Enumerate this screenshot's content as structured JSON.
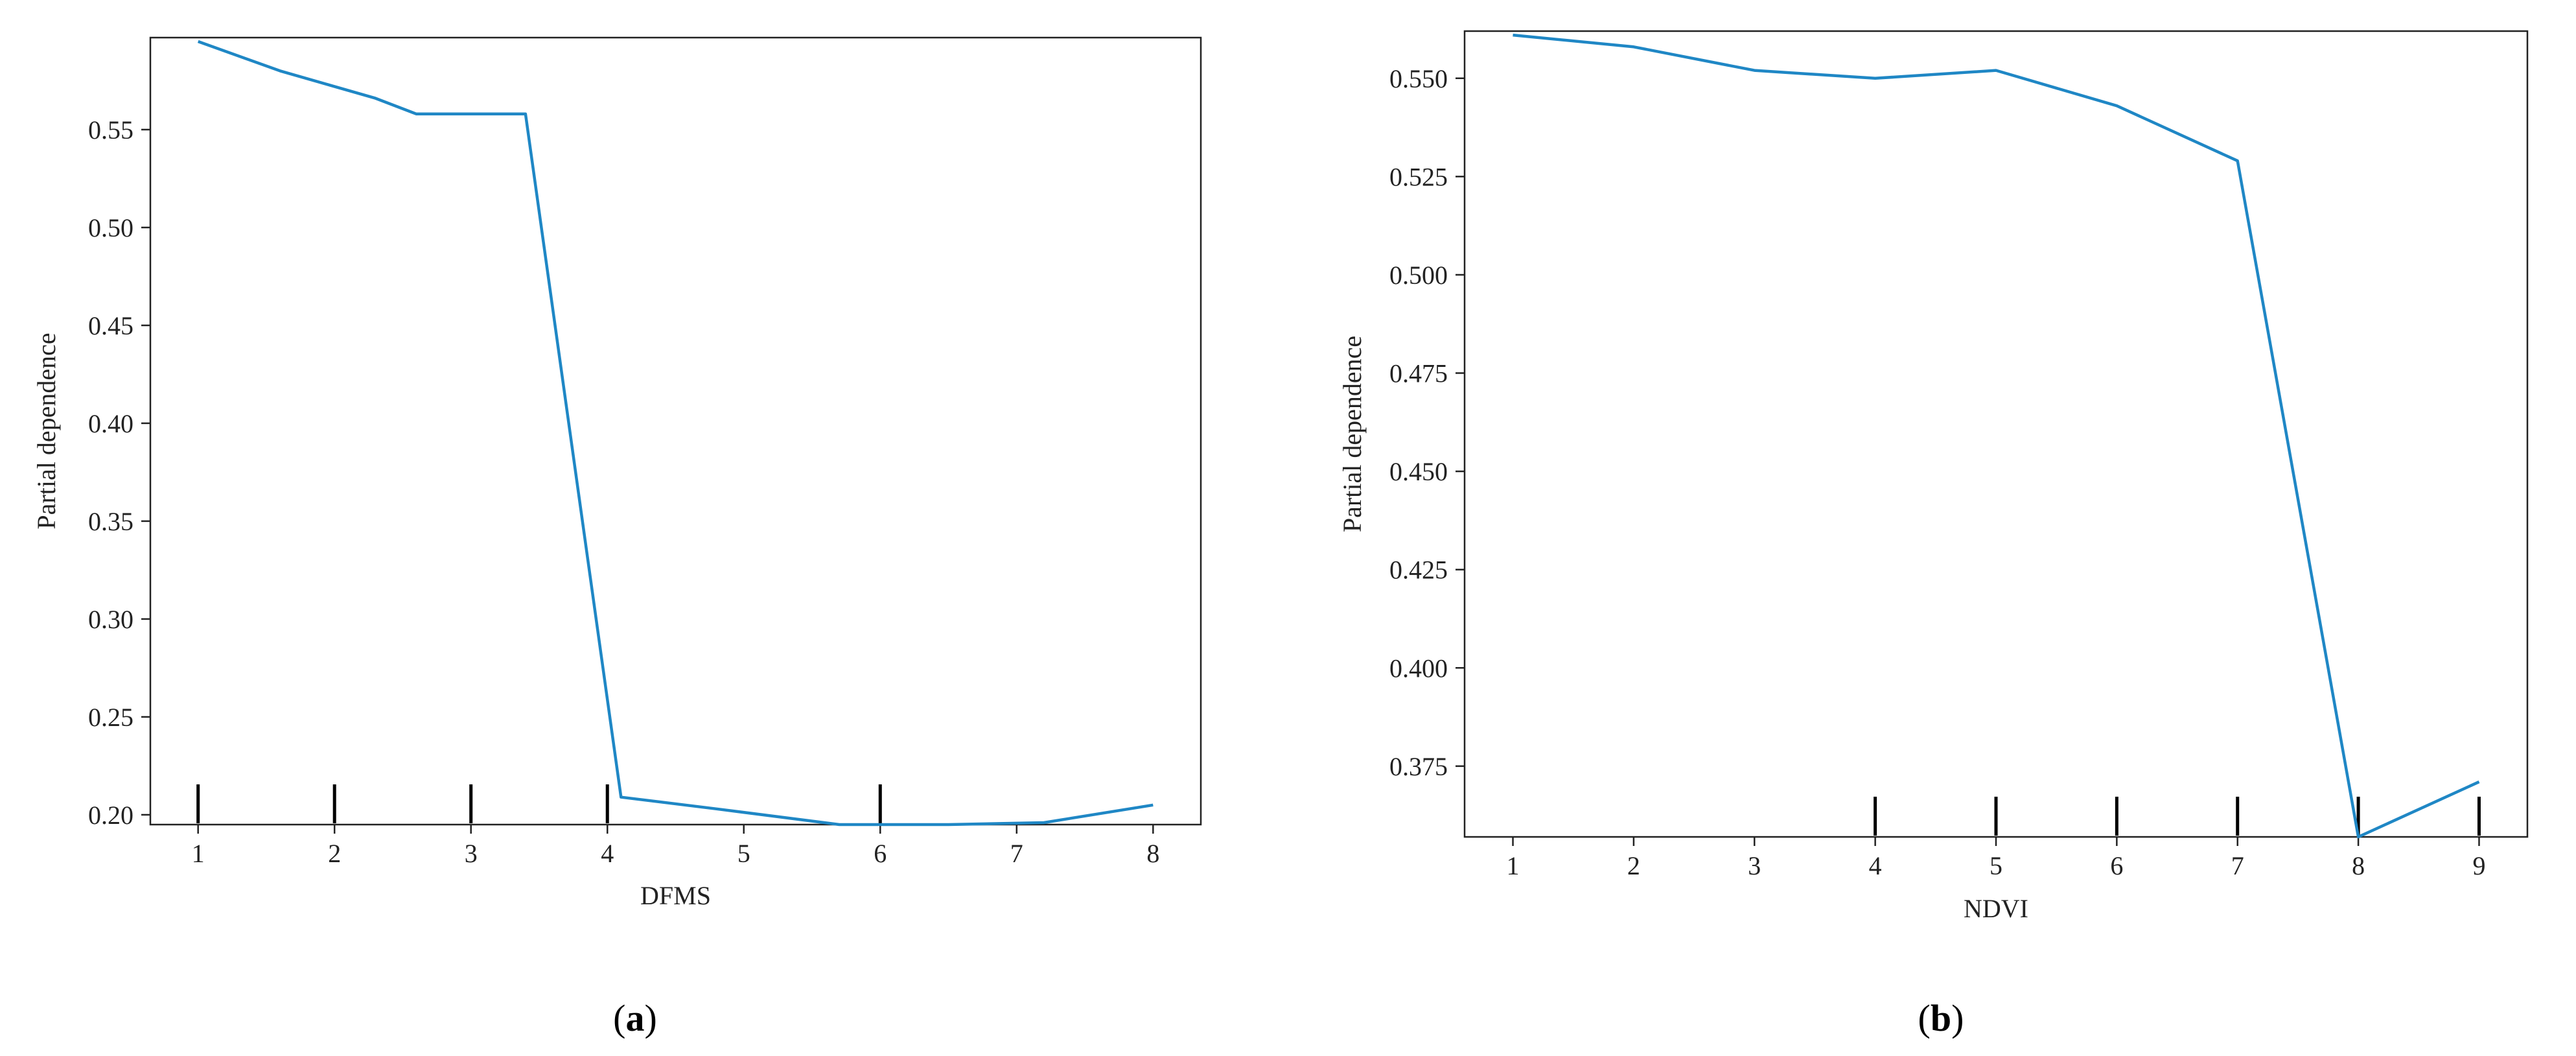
{
  "chart_data": [
    {
      "type": "line",
      "panel": "a",
      "caption_letter": "a",
      "xlabel": "DFMS",
      "ylabel": "Partial dependence",
      "xlim": [
        0.65,
        8.35
      ],
      "ylim": [
        0.195,
        0.597
      ],
      "xticks": [
        1,
        2,
        3,
        4,
        5,
        6,
        7,
        8
      ],
      "yticks": [
        0.2,
        0.25,
        0.3,
        0.35,
        0.4,
        0.45,
        0.5,
        0.55
      ],
      "ytick_labels": [
        "0.20",
        "0.25",
        "0.30",
        "0.35",
        "0.40",
        "0.45",
        "0.50",
        "0.55"
      ],
      "rug": [
        1,
        2,
        3,
        4,
        6
      ],
      "line_color": "#1f87c5",
      "x": [
        1,
        1.6,
        2.3,
        2.6,
        3.4,
        4.1,
        4.8,
        5.7,
        6.5,
        7.2,
        8
      ],
      "y": [
        0.595,
        0.58,
        0.566,
        0.558,
        0.558,
        0.209,
        0.203,
        0.195,
        0.195,
        0.196,
        0.205
      ]
    },
    {
      "type": "line",
      "panel": "b",
      "caption_letter": "b",
      "xlabel": "NDVI",
      "ylabel": "Partial dependence",
      "xlim": [
        0.6,
        9.4
      ],
      "ylim": [
        0.357,
        0.562
      ],
      "xticks": [
        1,
        2,
        3,
        4,
        5,
        6,
        7,
        8,
        9
      ],
      "yticks": [
        0.375,
        0.4,
        0.425,
        0.45,
        0.475,
        0.5,
        0.525,
        0.55
      ],
      "ytick_labels": [
        "0.375",
        "0.400",
        "0.425",
        "0.450",
        "0.475",
        "0.500",
        "0.525",
        "0.550"
      ],
      "rug": [
        4,
        5,
        6,
        7,
        8,
        9
      ],
      "line_color": "#1f87c5",
      "x": [
        1,
        2,
        3,
        4,
        5,
        6,
        7,
        8,
        9
      ],
      "y": [
        0.561,
        0.558,
        0.552,
        0.55,
        0.552,
        0.543,
        0.529,
        0.357,
        0.371
      ]
    }
  ]
}
